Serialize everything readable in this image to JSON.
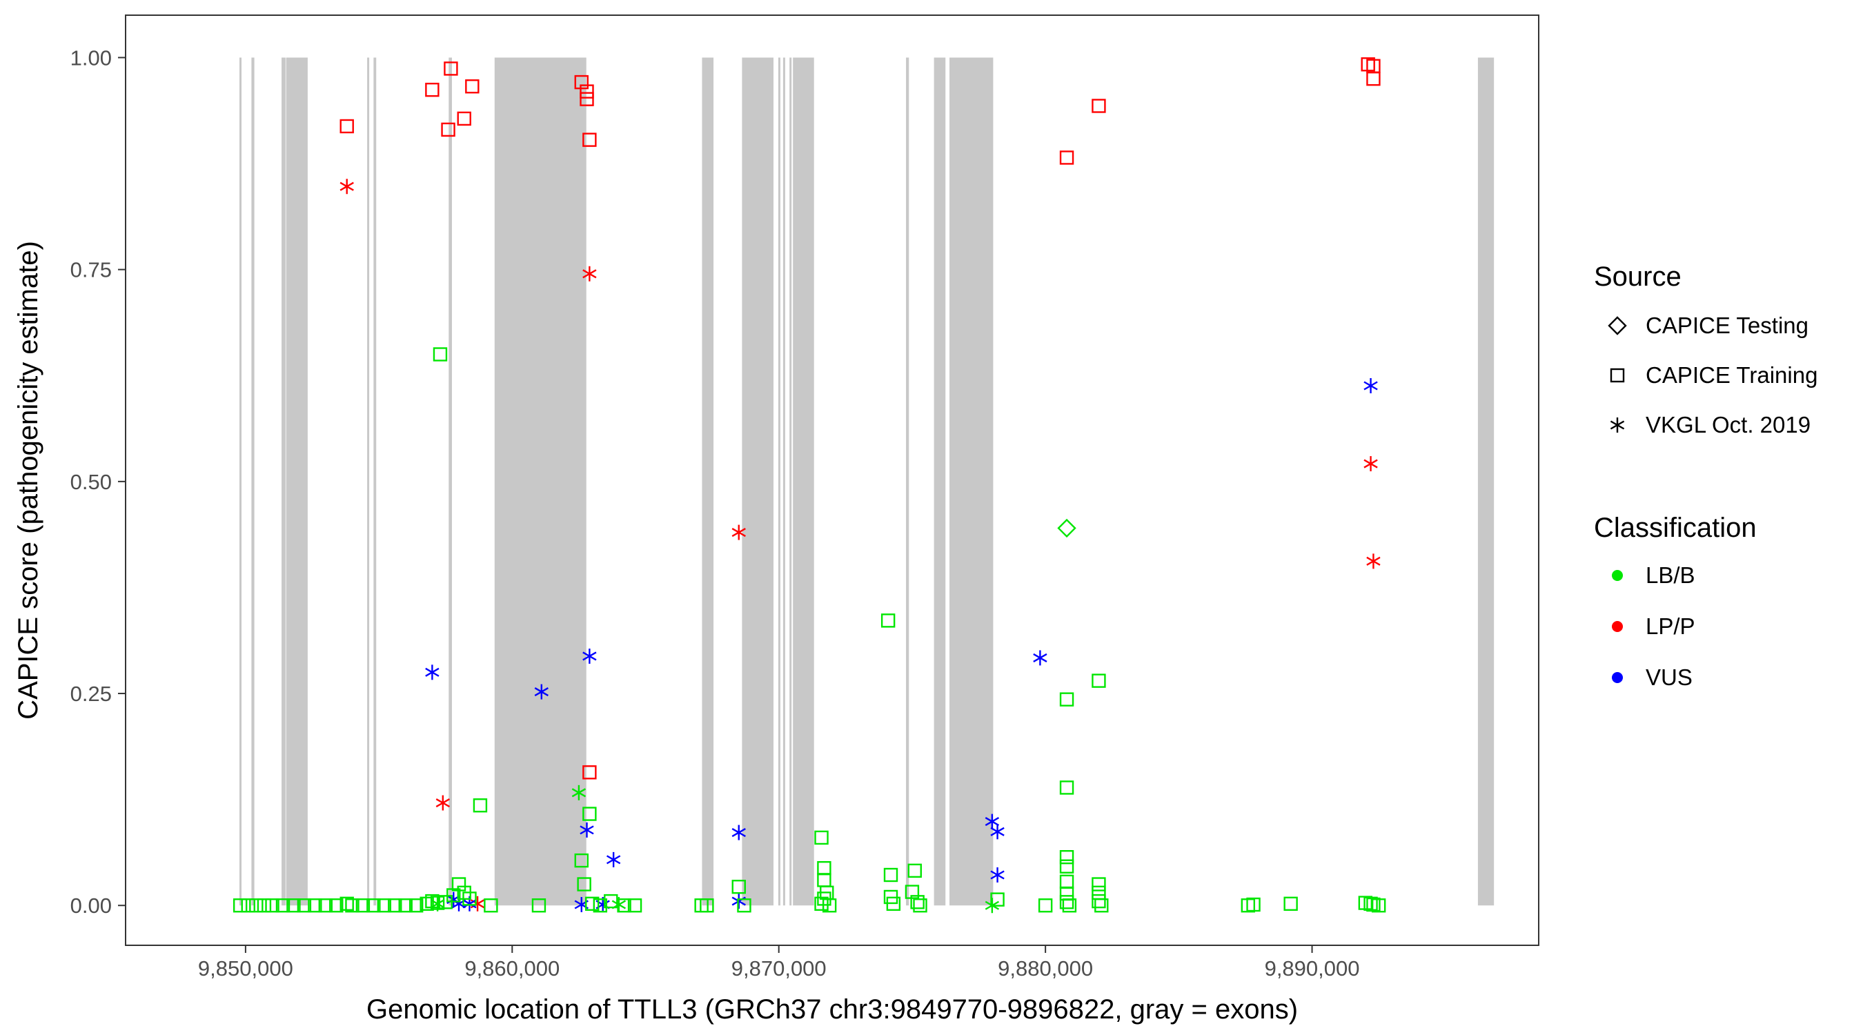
{
  "chart_data": {
    "type": "scatter",
    "title": "",
    "xlabel": "Genomic location of TTLL3 (GRCh37 chr3:9849770-9896822, gray = exons)",
    "ylabel": "CAPICE score (pathogenicity estimate)",
    "xlim": [
      9845500,
      9898500
    ],
    "ylim": [
      -0.047,
      1.05
    ],
    "x_ticks": [
      9850000,
      9860000,
      9870000,
      9880000,
      9890000
    ],
    "x_tick_labels": [
      "9,850,000",
      "9,860,000",
      "9,870,000",
      "9,880,000",
      "9,890,000"
    ],
    "y_ticks": [
      0,
      0.25,
      0.5,
      0.75,
      1
    ],
    "y_tick_labels": [
      "0.00",
      "0.25",
      "0.50",
      "0.75",
      "1.00"
    ],
    "grid": false,
    "legend_position": "right",
    "colors": {
      "LB/B": "#00e600",
      "LP/P": "#ff0000",
      "VUS": "#0000ff",
      "exon": "#c8c8c8"
    },
    "exons": [
      [
        9849770,
        9849830
      ],
      [
        9850220,
        9850330
      ],
      [
        9851350,
        9851500
      ],
      [
        9851520,
        9852330
      ],
      [
        9854560,
        9854620
      ],
      [
        9854800,
        9854900
      ],
      [
        9857620,
        9857740
      ],
      [
        9859340,
        9862780
      ],
      [
        9867120,
        9867550
      ],
      [
        9868620,
        9869800
      ],
      [
        9869980,
        9870030
      ],
      [
        9870160,
        9870220
      ],
      [
        9870400,
        9870460
      ],
      [
        9870530,
        9871320
      ],
      [
        9874770,
        9874880
      ],
      [
        9875820,
        9876250
      ],
      [
        9876400,
        9878040
      ],
      [
        9896220,
        9896822
      ]
    ],
    "legend": {
      "source_title": "Source",
      "source_items": [
        {
          "label": "CAPICE Testing",
          "shape": "diamond"
        },
        {
          "label": "CAPICE Training",
          "shape": "square"
        },
        {
          "label": "VKGL Oct. 2019",
          "shape": "asterisk"
        }
      ],
      "class_title": "Classification",
      "class_items": [
        {
          "label": "LB/B",
          "color": "#00e600"
        },
        {
          "label": "LP/P",
          "color": "#ff0000"
        },
        {
          "label": "VUS",
          "color": "#0000ff"
        }
      ]
    },
    "series": [
      {
        "source": "CAPICE Training",
        "classification": "LP/P",
        "shape": "square",
        "color": "#ff0000",
        "points": [
          [
            9853800,
            0.919
          ],
          [
            9857000,
            0.962
          ],
          [
            9857600,
            0.915
          ],
          [
            9857700,
            0.987
          ],
          [
            9858200,
            0.928
          ],
          [
            9858500,
            0.966
          ],
          [
            9862600,
            0.971
          ],
          [
            9862800,
            0.96
          ],
          [
            9862800,
            0.951
          ],
          [
            9862900,
            0.903
          ],
          [
            9862900,
            0.157
          ],
          [
            9880800,
            0.882
          ],
          [
            9882000,
            0.943
          ],
          [
            9892100,
            0.992
          ],
          [
            9892300,
            0.99
          ],
          [
            9892300,
            0.975
          ]
        ]
      },
      {
        "source": "VKGL Oct. 2019",
        "classification": "LP/P",
        "shape": "asterisk",
        "color": "#ff0000",
        "points": [
          [
            9853800,
            0.848
          ],
          [
            9857400,
            0.121
          ],
          [
            9858700,
            0.002
          ],
          [
            9862900,
            0.745
          ],
          [
            9868500,
            0.44
          ],
          [
            9892200,
            0.521
          ],
          [
            9892300,
            0.406
          ]
        ]
      },
      {
        "source": "VKGL Oct. 2019",
        "classification": "VUS",
        "shape": "asterisk",
        "color": "#0000ff",
        "points": [
          [
            9857000,
            0.275
          ],
          [
            9857800,
            0.007
          ],
          [
            9858000,
            0.002
          ],
          [
            9858400,
            0.002
          ],
          [
            9861100,
            0.252
          ],
          [
            9862600,
            0.001
          ],
          [
            9862800,
            0.089
          ],
          [
            9862900,
            0.294
          ],
          [
            9863400,
            0.001
          ],
          [
            9863800,
            0.054
          ],
          [
            9868500,
            0.086
          ],
          [
            9868500,
            0.005
          ],
          [
            9878000,
            0.099
          ],
          [
            9878200,
            0.087
          ],
          [
            9878200,
            0.036
          ],
          [
            9879800,
            0.292
          ],
          [
            9892200,
            0.613
          ]
        ]
      },
      {
        "source": "VKGL Oct. 2019",
        "classification": "LB/B",
        "shape": "asterisk",
        "color": "#00e600",
        "points": [
          [
            9857200,
            0.002
          ],
          [
            9862500,
            0.133
          ],
          [
            9864000,
            0.001
          ],
          [
            9878000,
            0.0
          ]
        ]
      },
      {
        "source": "CAPICE Testing",
        "classification": "LB/B",
        "shape": "diamond",
        "color": "#00e600",
        "points": [
          [
            9880800,
            0.445
          ]
        ]
      },
      {
        "source": "CAPICE Training",
        "classification": "LB/B",
        "shape": "square",
        "color": "#00e600",
        "points": [
          [
            9849800,
            0
          ],
          [
            9850100,
            0
          ],
          [
            9850400,
            0
          ],
          [
            9850700,
            0
          ],
          [
            9851000,
            0
          ],
          [
            9851400,
            0
          ],
          [
            9851800,
            0
          ],
          [
            9852200,
            0
          ],
          [
            9852600,
            0
          ],
          [
            9853000,
            0
          ],
          [
            9853400,
            0
          ],
          [
            9853800,
            0.002
          ],
          [
            9854000,
            0
          ],
          [
            9854400,
            0
          ],
          [
            9854800,
            0
          ],
          [
            9855200,
            0
          ],
          [
            9855600,
            0
          ],
          [
            9856000,
            0
          ],
          [
            9856400,
            0
          ],
          [
            9856800,
            0.002
          ],
          [
            9857000,
            0.005
          ],
          [
            9857200,
            0.003
          ],
          [
            9857300,
            0.65
          ],
          [
            9857500,
            0.004
          ],
          [
            9857800,
            0.012
          ],
          [
            9858000,
            0.025
          ],
          [
            9858200,
            0.015
          ],
          [
            9858400,
            0.008
          ],
          [
            9858800,
            0.118
          ],
          [
            9859200,
            0
          ],
          [
            9861000,
            0
          ],
          [
            9862600,
            0.053
          ],
          [
            9862700,
            0.025
          ],
          [
            9862900,
            0.108
          ],
          [
            9863000,
            0.002
          ],
          [
            9863300,
            0
          ],
          [
            9863700,
            0.005
          ],
          [
            9864200,
            0
          ],
          [
            9864600,
            0
          ],
          [
            9867100,
            0
          ],
          [
            9867300,
            0
          ],
          [
            9868500,
            0.022
          ],
          [
            9868700,
            0
          ],
          [
            9871600,
            0.08
          ],
          [
            9871700,
            0.044
          ],
          [
            9871700,
            0.03
          ],
          [
            9871800,
            0.015
          ],
          [
            9871700,
            0.008
          ],
          [
            9871600,
            0.002
          ],
          [
            9871900,
            0
          ],
          [
            9874100,
            0.336
          ],
          [
            9874200,
            0.036
          ],
          [
            9874200,
            0.01
          ],
          [
            9874300,
            0.002
          ],
          [
            9875000,
            0.016
          ],
          [
            9875100,
            0.041
          ],
          [
            9875200,
            0.004
          ],
          [
            9875300,
            0
          ],
          [
            9878200,
            0.007
          ],
          [
            9880000,
            0
          ],
          [
            9880800,
            0.243
          ],
          [
            9880800,
            0.139
          ],
          [
            9880800,
            0.057
          ],
          [
            9880800,
            0.046
          ],
          [
            9880800,
            0.028
          ],
          [
            9880800,
            0.014
          ],
          [
            9880800,
            0.004
          ],
          [
            9880900,
            0
          ],
          [
            9882000,
            0.265
          ],
          [
            9882000,
            0.025
          ],
          [
            9882000,
            0.015
          ],
          [
            9882000,
            0.005
          ],
          [
            9882100,
            0
          ],
          [
            9887600,
            0
          ],
          [
            9887800,
            0.001
          ],
          [
            9889200,
            0.002
          ],
          [
            9892000,
            0.003
          ],
          [
            9892200,
            0.002
          ],
          [
            9892300,
            0.001
          ],
          [
            9892500,
            0
          ]
        ]
      }
    ]
  }
}
